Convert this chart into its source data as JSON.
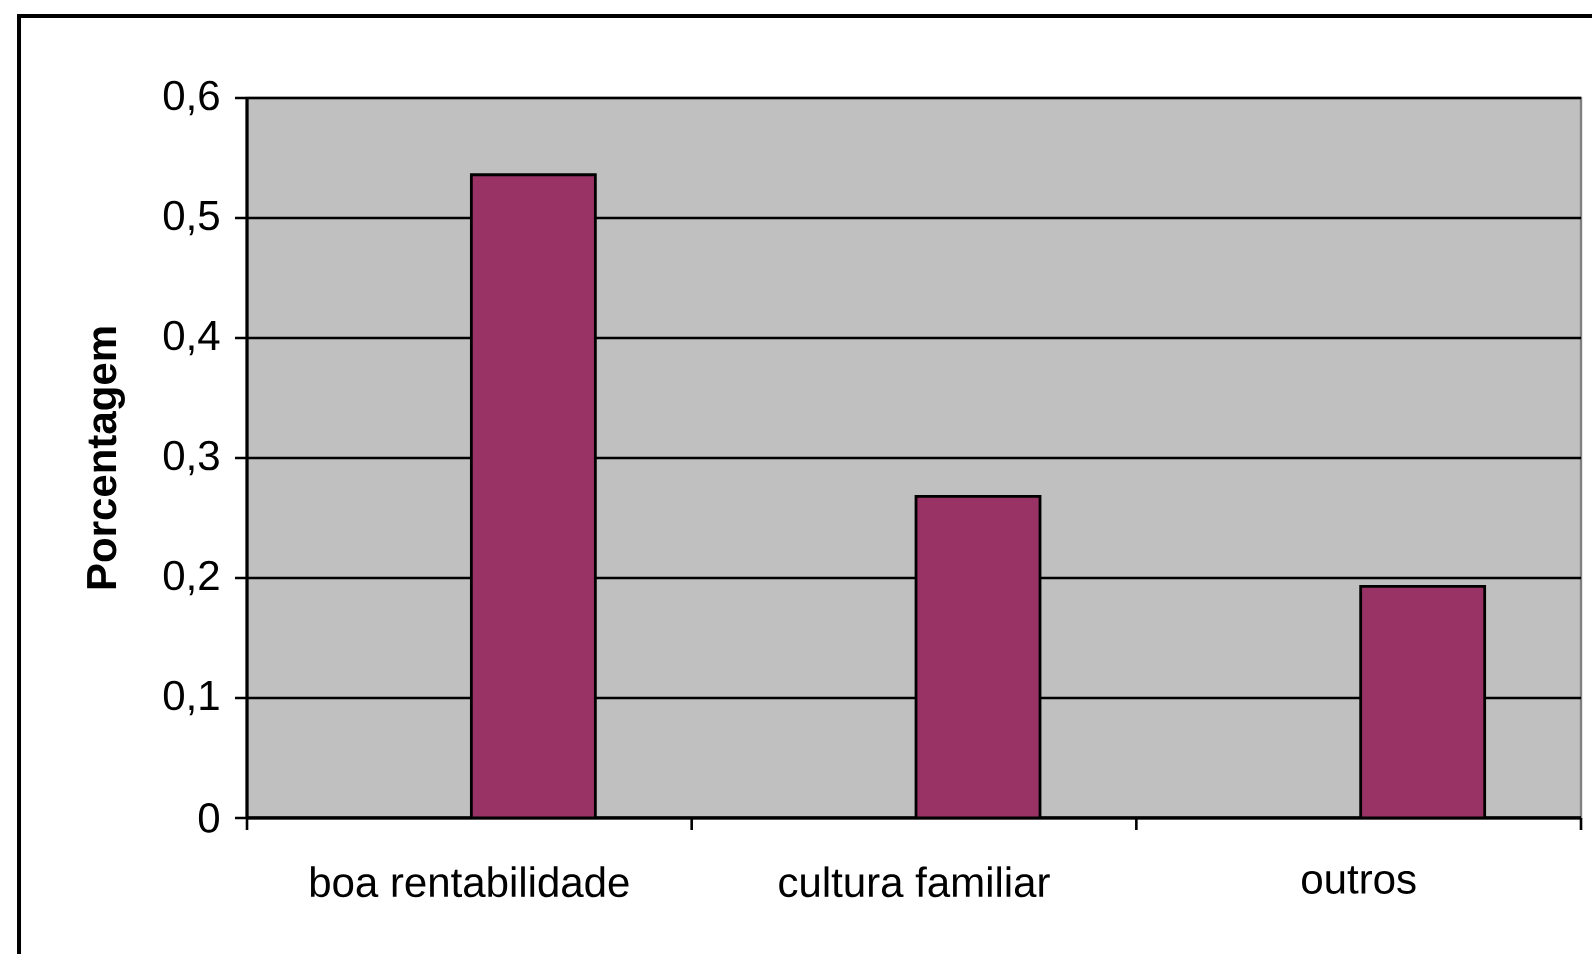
{
  "chart_data": {
    "type": "bar",
    "ylabel": "Porcentagem",
    "categories": [
      "boa rentabilidade",
      "cultura familiar",
      "outros"
    ],
    "values": [
      0.536,
      0.268,
      0.193
    ],
    "color": "#993366",
    "ylim": [
      0,
      0.6
    ],
    "yticks": [
      0,
      {
        "value": 0.1,
        "label": "0,1"
      },
      {
        "value": 0.2,
        "label": "0,2"
      },
      {
        "value": 0.3,
        "label": "0,3"
      },
      {
        "value": 0.4,
        "label": "0,4"
      },
      {
        "value": 0.5,
        "label": "0,5"
      },
      {
        "value": 0.6,
        "label": "0,6"
      }
    ],
    "grid": "y"
  }
}
